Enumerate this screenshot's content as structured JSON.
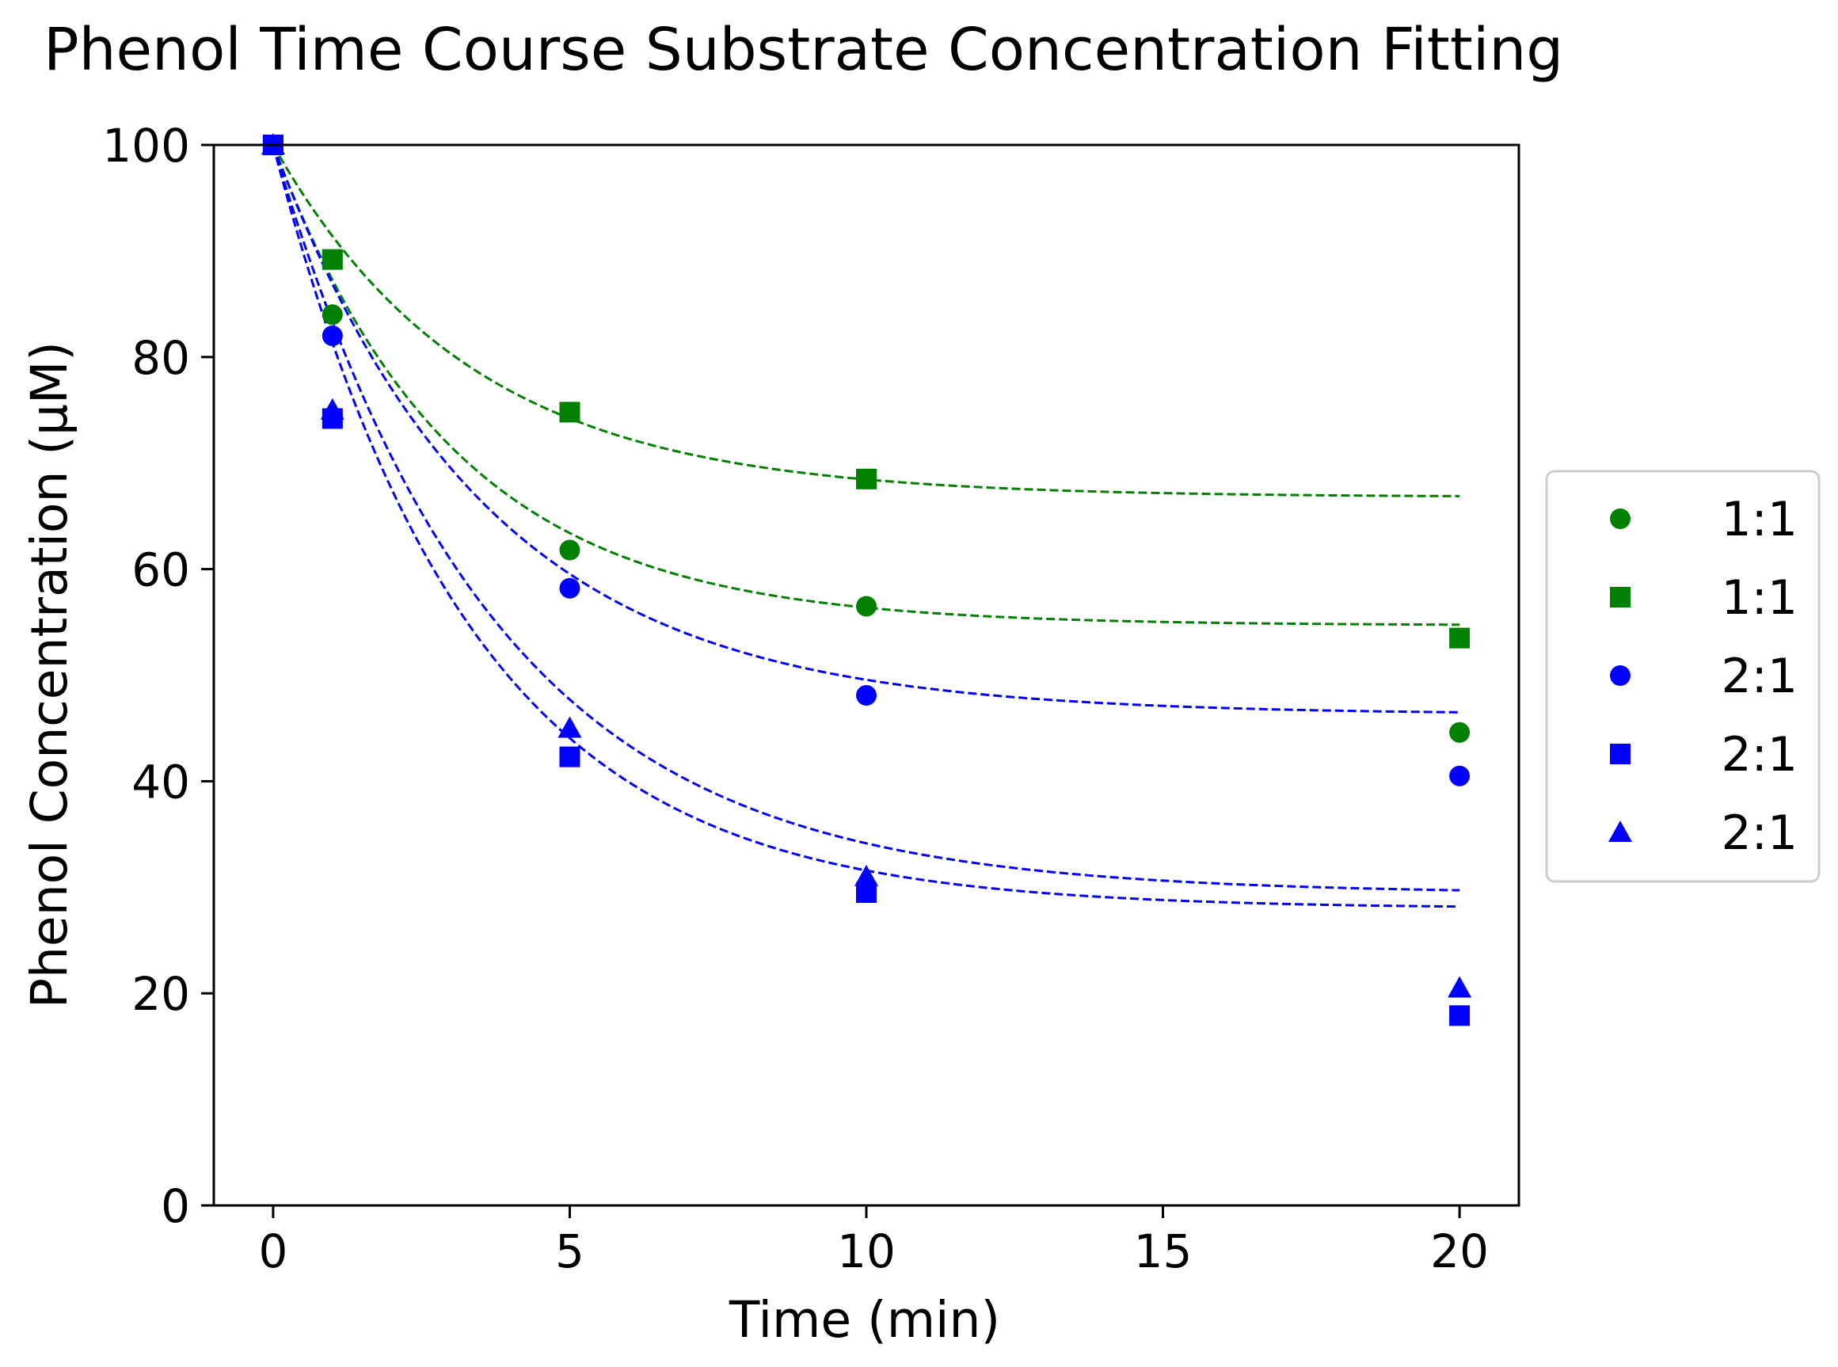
{
  "chart_data": {
    "type": "scatter",
    "title": "Phenol Time Course Substrate Concentration Fitting",
    "xlabel": "Time (min)",
    "ylabel": "Phenol Concentration (μM)",
    "xlim": [
      -1,
      21
    ],
    "ylim": [
      0,
      100
    ],
    "xticks": [
      0,
      5,
      10,
      15,
      20
    ],
    "yticks": [
      0,
      20,
      40,
      60,
      80,
      100
    ],
    "grid": false,
    "legend_position": "right",
    "series": [
      {
        "name": "1:1",
        "color": "#008000",
        "marker": "circle",
        "x": [
          0,
          1,
          5,
          10,
          20
        ],
        "y": [
          100,
          84,
          61.8,
          56.5,
          44.6
        ],
        "fit": {
          "plateau": 54.7,
          "k": 0.33
        }
      },
      {
        "name": "1:1",
        "color": "#008000",
        "marker": "square",
        "x": [
          0,
          1,
          5,
          10,
          20
        ],
        "y": [
          100,
          89.2,
          74.8,
          68.5,
          53.5
        ],
        "fit": {
          "plateau": 66.8,
          "k": 0.3
        }
      },
      {
        "name": "2:1",
        "color": "#0000ff",
        "marker": "circle",
        "x": [
          0,
          1,
          5,
          10,
          20
        ],
        "y": [
          100,
          82,
          58.2,
          48.1,
          40.5
        ],
        "fit": {
          "plateau": 46.3,
          "k": 0.28
        }
      },
      {
        "name": "2:1",
        "color": "#0000ff",
        "marker": "square",
        "x": [
          0,
          1,
          5,
          10,
          20
        ],
        "y": [
          100,
          74.2,
          42.3,
          29.5,
          17.9
        ],
        "fit": {
          "plateau": 28,
          "k": 0.3
        }
      },
      {
        "name": "2:1",
        "color": "#0000ff",
        "marker": "triangle",
        "x": [
          0,
          1,
          5,
          10,
          20
        ],
        "y": [
          100,
          75,
          45,
          31,
          20.5
        ],
        "fit": {
          "plateau": 29.4,
          "k": 0.27
        }
      }
    ]
  }
}
